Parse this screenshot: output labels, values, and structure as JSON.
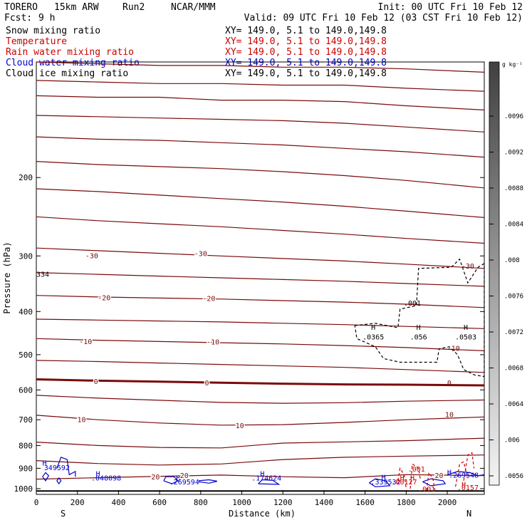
{
  "header": {
    "model": "TORERO",
    "resolution": "15km ARW",
    "run": "Run2",
    "institution": "NCAR/MMM",
    "init": "Init: 00 UTC Fri 10 Feb 12",
    "fcst_label": "Fcst:",
    "fcst_value": "9 h",
    "valid": "Valid: 09 UTC Fri 10 Feb 12 (03 CST Fri 10 Feb 12)"
  },
  "fields": [
    {
      "name": "Snow mixing ratio",
      "xy": "XY= 149.0,  5.1 to 149.0,149.8",
      "color": "#000000"
    },
    {
      "name": "Temperature",
      "xy": "XY= 149.0,  5.1 to 149.0,149.8",
      "color": "#cc0000"
    },
    {
      "name": "Rain water mixing ratio",
      "xy": "XY= 149.0,  5.1 to 149.0,149.8",
      "color": "#cc0000"
    },
    {
      "name": "Cloud water mixing ratio",
      "xy": "XY= 149.0,  5.1 to 149.0,149.8",
      "color": "#0000cc"
    },
    {
      "name": "Cloud ice mixing ratio",
      "xy": "XY= 149.0,  5.1 to 149.0,149.8",
      "color": "#000000"
    }
  ],
  "colorbar": {
    "unit_label": "g kg⁻¹",
    "ticks": [
      ".0096",
      ".0092",
      ".0088",
      ".0084",
      ".008",
      ".0076",
      ".0072",
      ".0068",
      ".0064",
      ".006",
      ".0056"
    ]
  },
  "colors": {
    "temperature": "#7a0a0a",
    "rain": "#cc0000",
    "cloud_water": "#0000cc",
    "cloud_ice": "#000000",
    "ground": "#000000"
  },
  "chart_data": {
    "type": "cross-section",
    "xlabel": "Distance (km)",
    "ylabel": "Pressure (hPa)",
    "x_ticks": [
      0,
      200,
      400,
      600,
      800,
      1000,
      1200,
      1400,
      1600,
      1800,
      2000
    ],
    "y_ticks": [
      200,
      300,
      400,
      500,
      600,
      700,
      800,
      900,
      1000
    ],
    "xlim": [
      0,
      2180
    ],
    "ylim": [
      1030,
      110
    ],
    "y_scale": "log",
    "end_labels": {
      "left": "S",
      "right": "N"
    },
    "temperature_contours": [
      {
        "level": "",
        "x": [
          0,
          300,
          600,
          900,
          1200,
          1500,
          1800,
          2180
        ],
        "p": [
          110,
          111,
          112,
          112,
          113,
          113,
          114,
          116
        ]
      },
      {
        "level": "",
        "x": [
          0,
          300,
          600,
          900,
          1200,
          1500,
          1800,
          2180
        ],
        "p": [
          121,
          122,
          123,
          123,
          124,
          124,
          126,
          128
        ]
      },
      {
        "level": "",
        "x": [
          0,
          300,
          600,
          900,
          1200,
          1500,
          1800,
          2180
        ],
        "p": [
          131,
          132,
          132,
          134,
          134,
          135,
          138,
          141
        ]
      },
      {
        "level": "",
        "x": [
          0,
          300,
          600,
          900,
          1200,
          1500,
          1800,
          2180
        ],
        "p": [
          145,
          146,
          147,
          148,
          149,
          151,
          154,
          158
        ]
      },
      {
        "level": "",
        "x": [
          0,
          300,
          600,
          900,
          1200,
          1500,
          1800,
          2180
        ],
        "p": [
          162,
          164,
          165,
          167,
          169,
          172,
          175,
          180
        ]
      },
      {
        "level": "",
        "x": [
          0,
          300,
          600,
          900,
          1200,
          1500,
          1800,
          2180
        ],
        "p": [
          184,
          187,
          189,
          191,
          194,
          198,
          203,
          211
        ]
      },
      {
        "level": "",
        "x": [
          0,
          300,
          600,
          900,
          1200,
          1500,
          1800,
          2180
        ],
        "p": [
          212,
          215,
          219,
          223,
          227,
          232,
          238,
          246
        ]
      },
      {
        "level": "",
        "x": [
          0,
          300,
          600,
          900,
          1200,
          1500,
          1800,
          2180
        ],
        "p": [
          245,
          250,
          254,
          258,
          263,
          268,
          274,
          281
        ]
      },
      {
        "level": "-30",
        "x": [
          0,
          300,
          600,
          900,
          1200,
          1500,
          1800,
          2180
        ],
        "p": [
          288,
          292,
          296,
          300,
          304,
          308,
          313,
          320
        ]
      },
      {
        "level": "",
        "x": [
          0,
          300,
          600,
          900,
          1200,
          1500,
          1800,
          2180
        ],
        "p": [
          327,
          330,
          333,
          336,
          339,
          342,
          346,
          351
        ]
      },
      {
        "level": "-20",
        "x": [
          0,
          300,
          600,
          900,
          1200,
          1500,
          1800,
          2180
        ],
        "p": [
          368,
          371,
          373,
          375,
          378,
          381,
          385,
          392
        ]
      },
      {
        "level": "",
        "x": [
          0,
          300,
          600,
          900,
          1200,
          1500,
          1800,
          2180
        ],
        "p": [
          416,
          418,
          420,
          422,
          425,
          428,
          432,
          437
        ]
      },
      {
        "level": "-10",
        "x": [
          0,
          300,
          600,
          900,
          1200,
          1500,
          1800,
          2180
        ],
        "p": [
          460,
          464,
          467,
          470,
          473,
          477,
          482,
          490
        ]
      },
      {
        "level": "",
        "x": [
          0,
          300,
          600,
          900,
          1200,
          1500,
          1800,
          2180
        ],
        "p": [
          515,
          518,
          522,
          526,
          530,
          534,
          540,
          548
        ]
      },
      {
        "level": "0",
        "x": [
          0,
          300,
          600,
          900,
          1200,
          1500,
          1800,
          2180
        ],
        "p": [
          568,
          572,
          575,
          578,
          581,
          583,
          584,
          586
        ]
      },
      {
        "level": "",
        "x": [
          0,
          300,
          600,
          900,
          1200,
          1500,
          1800,
          2180
        ],
        "p": [
          617,
          626,
          633,
          640,
          643,
          641,
          636,
          632
        ]
      },
      {
        "level": "10",
        "x": [
          0,
          300,
          600,
          900,
          1200,
          1500,
          1800,
          2180
        ],
        "p": [
          684,
          700,
          712,
          720,
          718,
          710,
          700,
          690
        ]
      },
      {
        "level": "",
        "x": [
          0,
          300,
          600,
          900,
          1200,
          1500,
          1800,
          2180
        ],
        "p": [
          786,
          800,
          808,
          810,
          790,
          785,
          780,
          770
        ]
      },
      {
        "level": "",
        "x": [
          0,
          300,
          600,
          900,
          1200,
          1500,
          1800,
          2180
        ],
        "p": [
          865,
          878,
          885,
          880,
          860,
          850,
          845,
          840
        ]
      },
      {
        "level": "20",
        "x": [
          0,
          300,
          600,
          900,
          1200,
          1500,
          1800,
          2180
        ],
        "p": [
          952,
          945,
          938,
          932,
          940,
          945,
          930,
          935
        ]
      }
    ],
    "ground_pressure": 1012,
    "labels": [
      {
        "text": "334",
        "color": "black",
        "x": 0,
        "p": 334
      },
      {
        "text": ".001",
        "color": "black",
        "x": 1830,
        "p": 388
      },
      {
        "text": "-30",
        "color": "temperature",
        "x": 2100,
        "p": 320
      },
      {
        "text": "H",
        "color": "black",
        "x": 1640,
        "p": 440
      },
      {
        "text": ".0365",
        "color": "black",
        "x": 1640,
        "p": 462
      },
      {
        "text": "H",
        "color": "black",
        "x": 1860,
        "p": 440
      },
      {
        "text": ".056",
        "color": "black",
        "x": 1860,
        "p": 462
      },
      {
        "text": "H",
        "color": "black",
        "x": 2090,
        "p": 440
      },
      {
        "text": ".0503",
        "color": "black",
        "x": 2090,
        "p": 462
      },
      {
        "text": "-10",
        "color": "temperature",
        "x": 2030,
        "p": 490
      },
      {
        "text": "0",
        "color": "temperature",
        "x": 2010,
        "p": 586
      },
      {
        "text": "10",
        "color": "temperature",
        "x": 2010,
        "p": 690
      },
      {
        "text": "H",
        "color": "cloud_water",
        "x": 40,
        "p": 888
      },
      {
        "text": "349592",
        "color": "cloud_water",
        "x": 100,
        "p": 908
      },
      {
        "text": "H",
        "color": "cloud_water",
        "x": 300,
        "p": 938
      },
      {
        "text": ".048098",
        "color": "cloud_water",
        "x": 340,
        "p": 958
      },
      {
        "text": "H",
        "color": "cloud_water",
        "x": 690,
        "p": 958
      },
      {
        "text": ".269594",
        "color": "cloud_water",
        "x": 720,
        "p": 978
      },
      {
        "text": "H",
        "color": "cloud_water",
        "x": 1100,
        "p": 938
      },
      {
        "text": ".174624",
        "color": "cloud_water",
        "x": 1120,
        "p": 958
      },
      {
        "text": "H",
        "color": "cloud_water",
        "x": 1690,
        "p": 955
      },
      {
        "text": ".339532",
        "color": "cloud_water",
        "x": 1700,
        "p": 978
      },
      {
        "text": "H",
        "color": "rain",
        "x": 1780,
        "p": 958
      },
      {
        "text": ".00127",
        "color": "rain",
        "x": 1790,
        "p": 978
      },
      {
        "text": "H",
        "color": "rain",
        "x": 1830,
        "p": 958
      },
      {
        "text": ".001",
        "color": "rain",
        "x": 1850,
        "p": 915
      },
      {
        "text": "H",
        "color": "cloud_water",
        "x": 2010,
        "p": 930
      },
      {
        "text": ".269548",
        "color": "cloud_water",
        "x": 2080,
        "p": 945
      },
      {
        "text": "H",
        "color": "rain",
        "x": 2080,
        "p": 990
      },
      {
        "text": ".0157",
        "color": "rain",
        "x": 2100,
        "p": 1008
      },
      {
        "text": ".001",
        "color": "rain",
        "x": 1900,
        "p": 1015
      }
    ],
    "temperature_contour_labels": [
      {
        "text": "-30",
        "x": 270,
        "p": 299
      },
      {
        "text": "-30",
        "x": 800,
        "p": 296
      },
      {
        "text": "-20",
        "x": 330,
        "p": 372
      },
      {
        "text": "-20",
        "x": 840,
        "p": 373
      },
      {
        "text": "-10",
        "x": 240,
        "p": 466
      },
      {
        "text": "-10",
        "x": 860,
        "p": 467
      },
      {
        "text": "0",
        "x": 290,
        "p": 573
      },
      {
        "text": "0",
        "x": 830,
        "p": 577
      },
      {
        "text": "10",
        "x": 220,
        "p": 698
      },
      {
        "text": "10",
        "x": 990,
        "p": 720
      },
      {
        "text": "20",
        "x": 580,
        "p": 940
      },
      {
        "text": "20",
        "x": 720,
        "p": 933
      },
      {
        "text": "20",
        "x": 1960,
        "p": 932
      }
    ]
  }
}
